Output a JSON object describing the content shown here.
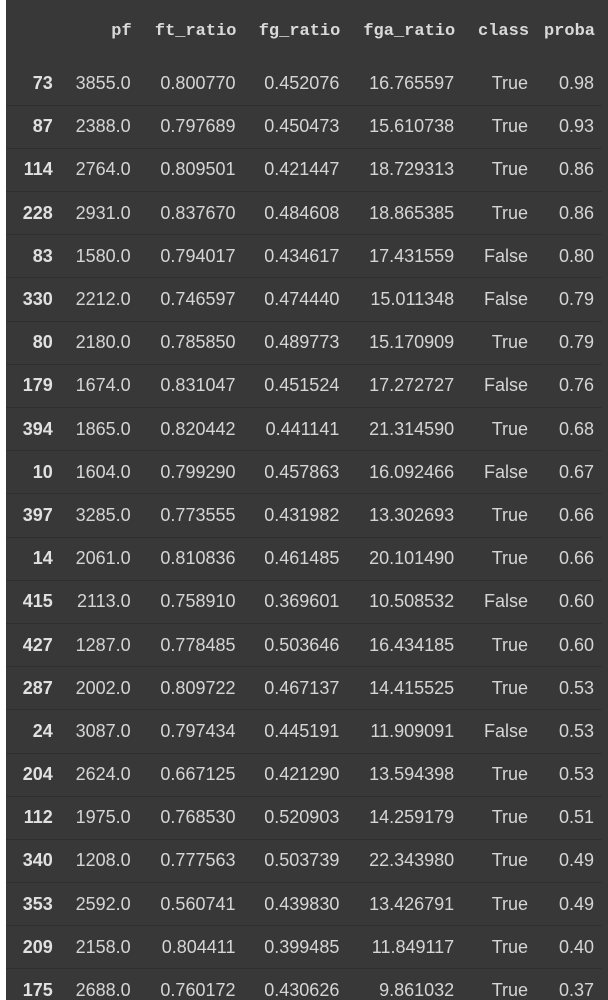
{
  "table": {
    "columns": [
      "",
      "pf",
      "ft_ratio",
      "fg_ratio",
      "fga_ratio",
      "class",
      "proba"
    ],
    "rows": [
      [
        "73",
        "3855.0",
        "0.800770",
        "0.452076",
        "16.765597",
        "True",
        "0.98"
      ],
      [
        "87",
        "2388.0",
        "0.797689",
        "0.450473",
        "15.610738",
        "True",
        "0.93"
      ],
      [
        "114",
        "2764.0",
        "0.809501",
        "0.421447",
        "18.729313",
        "True",
        "0.86"
      ],
      [
        "228",
        "2931.0",
        "0.837670",
        "0.484608",
        "18.865385",
        "True",
        "0.86"
      ],
      [
        "83",
        "1580.0",
        "0.794017",
        "0.434617",
        "17.431559",
        "False",
        "0.80"
      ],
      [
        "330",
        "2212.0",
        "0.746597",
        "0.474440",
        "15.011348",
        "False",
        "0.79"
      ],
      [
        "80",
        "2180.0",
        "0.785850",
        "0.489773",
        "15.170909",
        "True",
        "0.79"
      ],
      [
        "179",
        "1674.0",
        "0.831047",
        "0.451524",
        "17.272727",
        "False",
        "0.76"
      ],
      [
        "394",
        "1865.0",
        "0.820442",
        "0.441141",
        "21.314590",
        "True",
        "0.68"
      ],
      [
        "10",
        "1604.0",
        "0.799290",
        "0.457863",
        "16.092466",
        "False",
        "0.67"
      ],
      [
        "397",
        "3285.0",
        "0.773555",
        "0.431982",
        "13.302693",
        "True",
        "0.66"
      ],
      [
        "14",
        "2061.0",
        "0.810836",
        "0.461485",
        "20.101490",
        "True",
        "0.66"
      ],
      [
        "415",
        "2113.0",
        "0.758910",
        "0.369601",
        "10.508532",
        "False",
        "0.60"
      ],
      [
        "427",
        "1287.0",
        "0.778485",
        "0.503646",
        "16.434185",
        "True",
        "0.60"
      ],
      [
        "287",
        "2002.0",
        "0.809722",
        "0.467137",
        "14.415525",
        "True",
        "0.53"
      ],
      [
        "24",
        "3087.0",
        "0.797434",
        "0.445191",
        "11.909091",
        "False",
        "0.53"
      ],
      [
        "204",
        "2624.0",
        "0.667125",
        "0.421290",
        "13.594398",
        "True",
        "0.53"
      ],
      [
        "112",
        "1975.0",
        "0.768530",
        "0.520903",
        "14.259179",
        "True",
        "0.51"
      ],
      [
        "340",
        "1208.0",
        "0.777563",
        "0.503739",
        "22.343980",
        "True",
        "0.49"
      ],
      [
        "353",
        "2592.0",
        "0.560741",
        "0.439830",
        "13.426791",
        "True",
        "0.49"
      ],
      [
        "209",
        "2158.0",
        "0.804411",
        "0.399485",
        "11.849117",
        "True",
        "0.40"
      ],
      [
        "175",
        "2688.0",
        "0.760172",
        "0.430626",
        "9.861032",
        "True",
        "0.37"
      ]
    ]
  }
}
